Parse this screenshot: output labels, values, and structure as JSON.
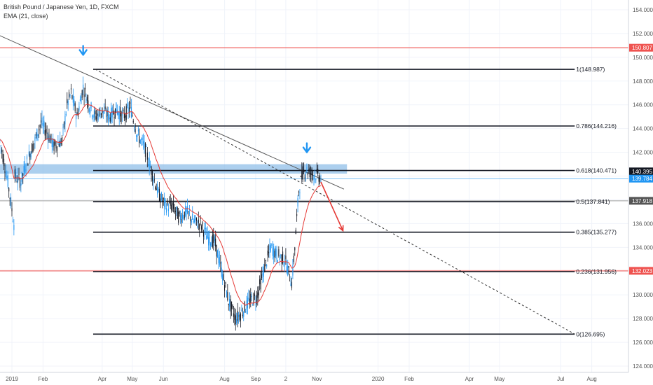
{
  "header": {
    "symbol_title": "British Pound / Japanese Yen, 1D, FXCM",
    "indicator_label": "EMA (21, close)"
  },
  "chart_data": {
    "type": "candlestick",
    "ylim": [
      123.6,
      155.0
    ],
    "y_ticks": [
      "154.000",
      "152.000",
      "150.000",
      "148.000",
      "146.000",
      "144.000",
      "142.000",
      "140.000",
      "138.000",
      "136.000",
      "134.000",
      "132.000",
      "130.000",
      "128.000",
      "126.000",
      "124.000"
    ],
    "x_ticks": [
      "2019",
      "Feb",
      "Apr",
      "May",
      "Jun",
      "Aug",
      "Sep",
      "2",
      "Nov",
      "2020",
      "Feb",
      "Apr",
      "May",
      "Jul",
      "Aug"
    ],
    "price_badges": [
      {
        "value": "150.807",
        "color": "#ef5350"
      },
      {
        "value": "140.395",
        "color": "#131722"
      },
      {
        "value": "139.784",
        "color": "#2196f3"
      },
      {
        "value": "137.918",
        "color": "#555555"
      },
      {
        "value": "132.023",
        "color": "#ef5350"
      }
    ],
    "horizontal_levels": [
      {
        "price": 150.807,
        "color": "#ef5350"
      },
      {
        "price": 132.023,
        "color": "#ef5350"
      }
    ],
    "fib_levels": [
      {
        "label": "1(148.987)",
        "price": 148.987
      },
      {
        "label": "0.786(144.216)",
        "price": 144.216
      },
      {
        "label": "0.618(140.471)",
        "price": 140.471
      },
      {
        "label": "0.5(137.841)",
        "price": 137.841
      },
      {
        "label": "0.385(135.277)",
        "price": 135.277
      },
      {
        "label": "0.236(131.956)",
        "price": 131.956
      },
      {
        "label": "0(126.695)",
        "price": 126.695
      }
    ],
    "resistance_zone": {
      "price_from": 140.2,
      "price_to": 141.0
    },
    "trendline": {
      "from": {
        "date": "2018-12-10",
        "price": 152.2
      },
      "to": {
        "date": "2019-11-28",
        "price": 138.9
      }
    },
    "dashed_trendline": {
      "from": {
        "date": "2019-03-25",
        "price": 149.0
      },
      "to": {
        "date": "2020-07-15",
        "price": 126.7
      }
    },
    "markers": [
      {
        "type": "down-arrow",
        "date": "2019-03-13",
        "price": 150.2,
        "color": "#2196f3"
      },
      {
        "type": "down-arrow",
        "date": "2019-10-22",
        "price": 142.0,
        "color": "#2196f3"
      }
    ],
    "projection_arrow": {
      "from": {
        "date": "2019-11-05",
        "price": 139.5
      },
      "to": {
        "date": "2019-11-27",
        "price": 135.4
      },
      "color": "#e53935"
    },
    "price_path": [
      [
        "2018-12-20",
        143.0
      ],
      [
        "2018-12-28",
        139.5
      ],
      [
        "2019-01-03",
        136.0
      ],
      [
        "2019-01-04",
        140.0
      ],
      [
        "2019-01-10",
        139.5
      ],
      [
        "2019-01-15",
        141.0
      ],
      [
        "2019-01-24",
        143.0
      ],
      [
        "2019-01-30",
        144.5
      ],
      [
        "2019-02-06",
        143.5
      ],
      [
        "2019-02-12",
        142.5
      ],
      [
        "2019-02-20",
        143.0
      ],
      [
        "2019-02-25",
        146.0
      ],
      [
        "2019-03-01",
        147.0
      ],
      [
        "2019-03-07",
        145.0
      ],
      [
        "2019-03-13",
        147.5
      ],
      [
        "2019-03-19",
        146.0
      ],
      [
        "2019-03-25",
        145.0
      ],
      [
        "2019-04-01",
        145.5
      ],
      [
        "2019-04-08",
        145.0
      ],
      [
        "2019-04-15",
        145.6
      ],
      [
        "2019-04-22",
        145.0
      ],
      [
        "2019-04-29",
        145.8
      ],
      [
        "2019-05-06",
        143.5
      ],
      [
        "2019-05-13",
        142.5
      ],
      [
        "2019-05-20",
        140.5
      ],
      [
        "2019-05-27",
        138.5
      ],
      [
        "2019-06-03",
        137.5
      ],
      [
        "2019-06-10",
        137.5
      ],
      [
        "2019-06-17",
        136.5
      ],
      [
        "2019-06-24",
        137.0
      ],
      [
        "2019-07-01",
        136.2
      ],
      [
        "2019-07-08",
        136.0
      ],
      [
        "2019-07-15",
        134.8
      ],
      [
        "2019-07-22",
        134.5
      ],
      [
        "2019-07-29",
        132.0
      ],
      [
        "2019-08-05",
        129.5
      ],
      [
        "2019-08-12",
        128.0
      ],
      [
        "2019-08-19",
        128.6
      ],
      [
        "2019-08-26",
        129.5
      ],
      [
        "2019-09-02",
        129.8
      ],
      [
        "2019-09-09",
        132.0
      ],
      [
        "2019-09-16",
        134.0
      ],
      [
        "2019-09-23",
        133.3
      ],
      [
        "2019-09-30",
        133.0
      ],
      [
        "2019-10-07",
        131.0
      ],
      [
        "2019-10-10",
        134.0
      ],
      [
        "2019-10-14",
        138.8
      ],
      [
        "2019-10-18",
        140.3
      ],
      [
        "2019-10-22",
        140.5
      ],
      [
        "2019-10-28",
        140.2
      ],
      [
        "2019-11-01",
        140.1
      ],
      [
        "2019-11-06",
        139.8
      ]
    ]
  }
}
